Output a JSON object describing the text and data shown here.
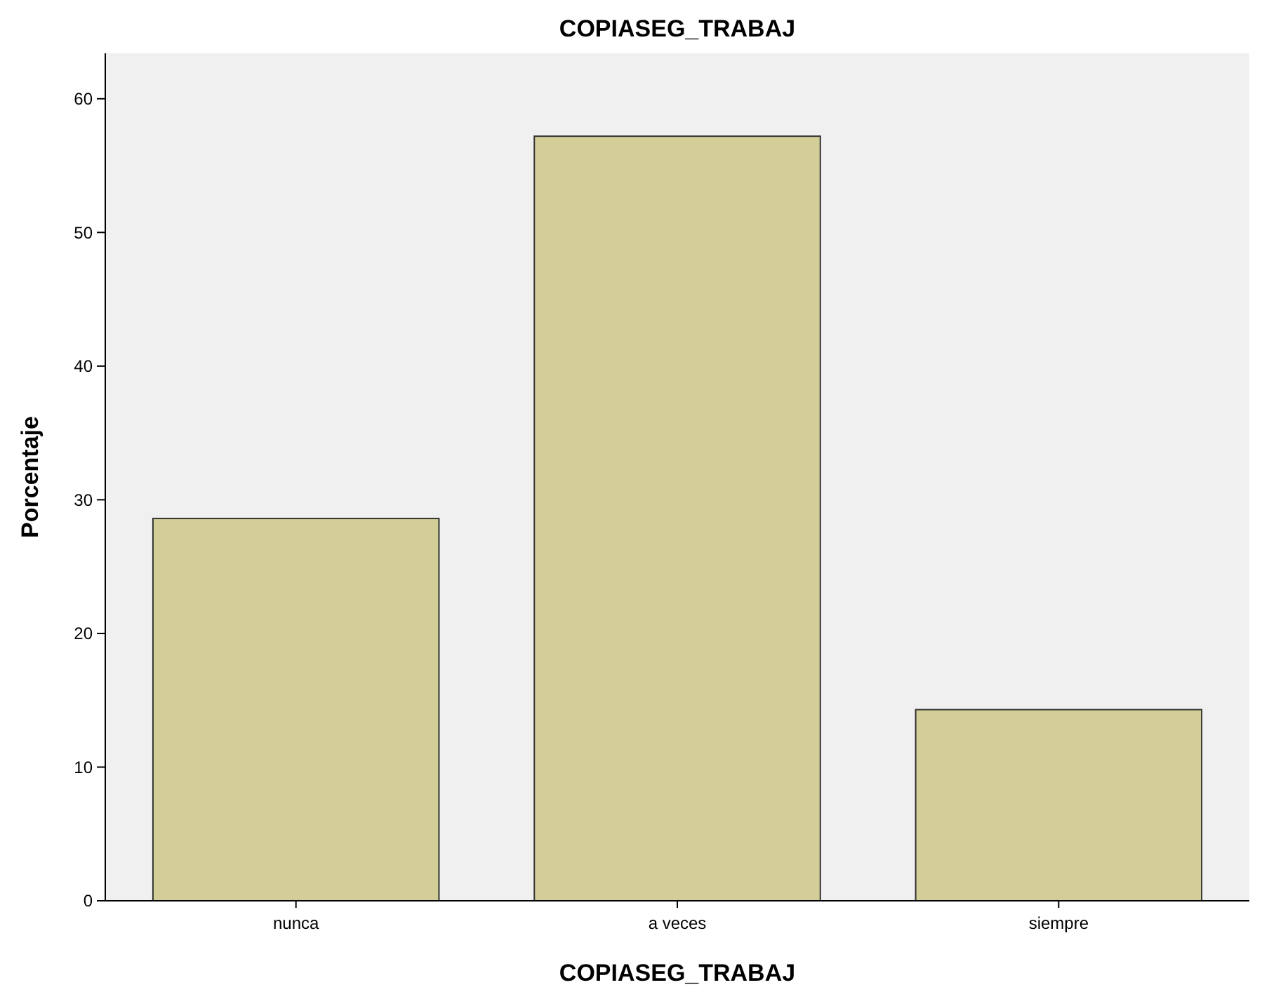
{
  "chart_data": {
    "type": "bar",
    "title": "COPIASEG_TRABAJ",
    "xlabel": "COPIASEG_TRABAJ",
    "ylabel": "Porcentaje",
    "categories": [
      "nunca",
      "a veces",
      "siempre"
    ],
    "values": [
      28.6,
      57.2,
      14.3
    ],
    "color": "#d3ce97",
    "ylim": [
      0,
      63.4
    ],
    "yticks": [
      0,
      10,
      20,
      30,
      40,
      50,
      60
    ],
    "grid": false
  }
}
